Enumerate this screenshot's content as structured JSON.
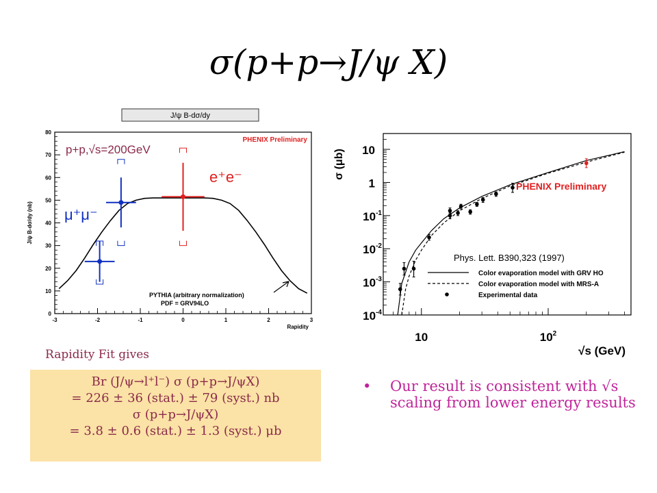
{
  "slide": {
    "title": "σ(p+p→J/ψ X)",
    "fit_caption": "Rapidity Fit gives",
    "result_lines": [
      "Br (J/ψ→l⁺l⁻) σ (p+p→J/ψX)",
      "= 226 ± 36 (stat.) ± 79 (syst.) nb",
      "σ (p+p→J/ψX)",
      "= 3.8 ± 0.6 (stat.) ± 1.3 (syst.) μb"
    ],
    "bullet": "Our result is consistent with √s scaling from lower energy results"
  },
  "chart_data": [
    {
      "type": "scatter",
      "title": "J/ψ B-dσ/dy",
      "xlabel": "Rapidity",
      "ylabel": "J/ψ B-dσ/dy (nb)",
      "xlim": [
        -3,
        3
      ],
      "ylim": [
        0,
        80
      ],
      "xticks": [
        "-3",
        "-2",
        "-1",
        "0",
        "1",
        "2",
        "3"
      ],
      "yticks": [
        "0",
        "10",
        "20",
        "30",
        "40",
        "50",
        "60",
        "70",
        "80"
      ],
      "annotations": {
        "preliminary": "PHENIX Preliminary",
        "energy": "p+p,√s=200GeV",
        "pythia_line1": "PYTHIA (arbitrary normalization)",
        "pythia_line2": "PDF = GRV94LO"
      },
      "series": [
        {
          "name": "μ⁺μ⁻",
          "color": "#1030c0",
          "points": [
            {
              "x": -1.95,
              "y": 23,
              "xerr": 0.35,
              "yerr": 9,
              "sys_low": 13,
              "sys_high": 32
            },
            {
              "x": -1.45,
              "y": 49,
              "xerr": 0.35,
              "yerr": 11,
              "sys_low": 30,
              "sys_high": 68
            }
          ]
        },
        {
          "name": "e⁺e⁻",
          "color": "#e02020",
          "points": [
            {
              "x": 0,
              "y": 51.5,
              "xerr": 0.5,
              "yerr": 15,
              "sys_low": 30,
              "sys_high": 73
            }
          ]
        }
      ],
      "curve": {
        "name": "PYTHIA",
        "x": [
          -2.9,
          -2.7,
          -2.5,
          -2.3,
          -2.1,
          -1.9,
          -1.7,
          -1.5,
          -1.3,
          -1.1,
          -0.9,
          -0.7,
          -0.5,
          -0.3,
          0,
          0.3,
          0.5,
          0.7,
          0.9,
          1.1,
          1.3,
          1.5,
          1.7,
          1.9,
          2.1,
          2.3,
          2.5,
          2.7,
          2.9
        ],
        "y": [
          11,
          14.5,
          19,
          24.5,
          30.5,
          36,
          41,
          45.5,
          48.5,
          50,
          50.8,
          51,
          51,
          51,
          51,
          51,
          51,
          50.8,
          50,
          48.5,
          45.5,
          41,
          36,
          30.5,
          24.5,
          19,
          14.5,
          11,
          9
        ]
      }
    },
    {
      "type": "scatter",
      "title": "",
      "xlabel": "√s (GeV)",
      "ylabel": "σ (μb)",
      "xscale": "log",
      "yscale": "log",
      "xlim": [
        5,
        450
      ],
      "ylim": [
        0.0001,
        30
      ],
      "xticks": [
        {
          "value": 10,
          "label": "10"
        },
        {
          "value": 100,
          "label": "10",
          "sup": "2"
        }
      ],
      "yticks": [
        {
          "value": 10,
          "label": "10",
          "sup": ""
        },
        {
          "value": 1,
          "label": "1",
          "sup": ""
        },
        {
          "value": 0.1,
          "label": "10",
          "sup": "-1"
        },
        {
          "value": 0.01,
          "label": "10",
          "sup": "-2"
        },
        {
          "value": 0.001,
          "label": "10",
          "sup": "-3"
        },
        {
          "value": 0.0001,
          "label": "10",
          "sup": "-4"
        }
      ],
      "annotations": {
        "preliminary": "PHENIX Preliminary",
        "reference": "Phys. Lett. B390,323 (1997)"
      },
      "legend": {
        "placement": "bottom-right",
        "entries": [
          {
            "label": "Color evaporation model with GRV HO",
            "style": "solid"
          },
          {
            "label": "Color evaporation model with MRS-A",
            "style": "dashed"
          },
          {
            "label": "Experimental data",
            "style": "marker"
          }
        ]
      },
      "series": [
        {
          "name": "Experimental data",
          "color": "#000000",
          "points": [
            {
              "x": 6.8,
              "y": 0.0006,
              "ylo": 0.0004,
              "yhi": 0.0009
            },
            {
              "x": 7.3,
              "y": 0.0025,
              "ylo": 0.0016,
              "yhi": 0.0038
            },
            {
              "x": 8.7,
              "y": 0.0025,
              "ylo": 0.0014,
              "yhi": 0.0042
            },
            {
              "x": 11.5,
              "y": 0.022,
              "ylo": 0.018,
              "yhi": 0.027
            },
            {
              "x": 16.8,
              "y": 0.1,
              "ylo": 0.08,
              "yhi": 0.12
            },
            {
              "x": 16.8,
              "y": 0.14,
              "ylo": 0.11,
              "yhi": 0.17
            },
            {
              "x": 19.4,
              "y": 0.12,
              "ylo": 0.1,
              "yhi": 0.14
            },
            {
              "x": 20.5,
              "y": 0.19,
              "ylo": 0.16,
              "yhi": 0.22
            },
            {
              "x": 24.3,
              "y": 0.13,
              "ylo": 0.11,
              "yhi": 0.15
            },
            {
              "x": 27.4,
              "y": 0.22,
              "ylo": 0.19,
              "yhi": 0.25
            },
            {
              "x": 30.6,
              "y": 0.3,
              "ylo": 0.25,
              "yhi": 0.35
            },
            {
              "x": 38.8,
              "y": 0.45,
              "ylo": 0.38,
              "yhi": 0.52
            },
            {
              "x": 52.4,
              "y": 0.7,
              "ylo": 0.5,
              "yhi": 0.95
            }
          ]
        },
        {
          "name": "PHENIX Preliminary",
          "color": "#e02020",
          "points": [
            {
              "x": 200,
              "y": 3.8,
              "ylo": 2.8,
              "yhi": 5.2
            }
          ]
        }
      ],
      "curves": [
        {
          "name": "Color evaporation model with GRV HO",
          "style": "solid",
          "x": [
            6.5,
            7,
            8,
            9,
            10,
            12,
            15,
            20,
            30,
            50,
            100,
            200,
            400
          ],
          "y": [
            0.0001,
            0.0009,
            0.004,
            0.009,
            0.015,
            0.035,
            0.08,
            0.17,
            0.38,
            0.85,
            2.0,
            4.6,
            8.5
          ]
        },
        {
          "name": "Color evaporation model with MRS-A",
          "style": "dashed",
          "x": [
            7,
            7.5,
            8,
            9,
            10,
            12,
            15,
            20,
            30,
            50,
            100,
            200,
            400
          ],
          "y": [
            0.0001,
            0.0006,
            0.0015,
            0.0045,
            0.009,
            0.025,
            0.06,
            0.14,
            0.33,
            0.78,
            1.9,
            4.1,
            8.2
          ]
        }
      ]
    }
  ]
}
